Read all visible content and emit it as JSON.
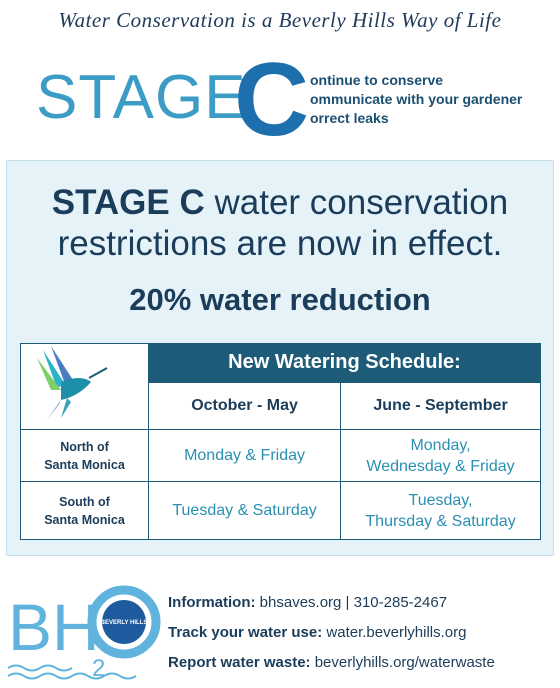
{
  "header": {
    "tagline": "Water Conservation is a Beverly Hills Way of Life",
    "stage_word": "STAGE",
    "stage_letter": "C",
    "c_lines": [
      "ontinue to conserve",
      "ommunicate with your gardener",
      "orrect leaks"
    ]
  },
  "notice": {
    "headline_bold": "STAGE C",
    "headline_rest": " water conservation restrictions are now in effect.",
    "reduction": "20% water reduction"
  },
  "table": {
    "title": "New Watering Schedule:",
    "columns": [
      "October - May",
      "June - September"
    ],
    "rows": [
      [
        "North of\nSanta Monica",
        "Monday & Friday",
        "Monday,\nWednesday & Friday"
      ],
      [
        "South of\nSanta Monica",
        "Tuesday & Saturday",
        "Tuesday,\nThursday & Saturday"
      ]
    ]
  },
  "footer": {
    "logo": {
      "bh": "BH",
      "sub": "2",
      "o": "O",
      "seal": "BEVERLY HILLS"
    },
    "contacts": [
      {
        "label": "Information:",
        "value": "bhsaves.org | 310-285-2467"
      },
      {
        "label": "Track your water use:",
        "value": "water.beverlyhills.org"
      },
      {
        "label": "Report water waste:",
        "value": "beverlyhills.org/waterwaste"
      }
    ]
  }
}
